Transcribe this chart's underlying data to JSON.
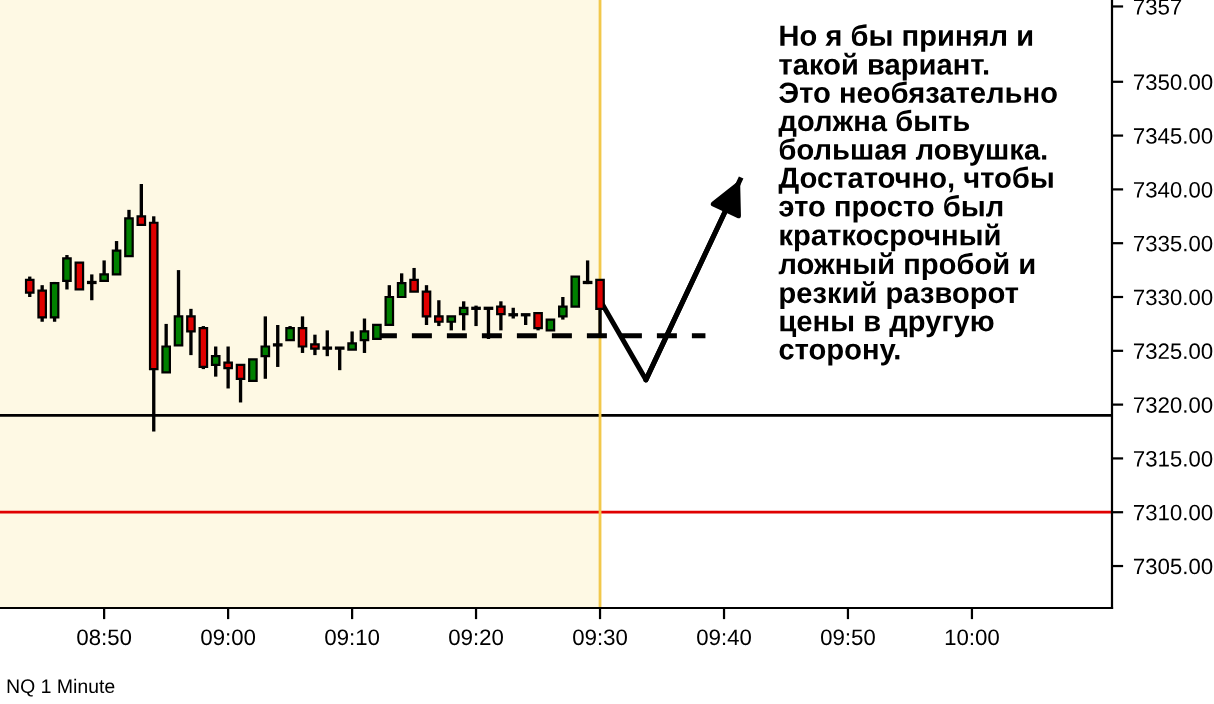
{
  "chart_data": {
    "type": "candlestick",
    "x": [
      8.7333,
      8.75,
      8.7667,
      8.7833,
      8.8,
      8.8167,
      8.8333,
      8.85,
      8.8667,
      8.8833,
      8.9,
      8.9167,
      8.9333,
      8.95,
      8.9667,
      8.9833,
      9.0,
      9.0167,
      9.0333,
      9.05,
      9.0667,
      9.0833,
      9.1,
      9.1167,
      9.1333,
      9.15,
      9.1667,
      9.1833,
      9.2,
      9.2167,
      9.2333,
      9.25,
      9.2667,
      9.2833,
      9.3,
      9.3167,
      9.3333,
      9.35,
      9.3667,
      9.3833,
      9.4,
      9.4167,
      9.4333,
      9.45,
      9.4667,
      9.4833,
      9.5
    ],
    "ohlc": [
      [
        7331.6,
        7331.9,
        7330.0,
        7330.4
      ],
      [
        7330.6,
        7331.1,
        7327.7,
        7328.1
      ],
      [
        7328.1,
        7331.4,
        7327.7,
        7331.3
      ],
      [
        7331.5,
        7333.9,
        7330.7,
        7333.6
      ],
      [
        7333.2,
        7333.2,
        7330.7,
        7330.7
      ],
      [
        7331.4,
        7332.1,
        7329.7,
        7331.3
      ],
      [
        7331.5,
        7333.4,
        7331.5,
        7332.1
      ],
      [
        7332.1,
        7335.2,
        7332.1,
        7334.3
      ],
      [
        7333.8,
        7338.1,
        7333.8,
        7337.3
      ],
      [
        7337.5,
        7340.5,
        7336.7,
        7336.7
      ],
      [
        7336.9,
        7337.5,
        7317.5,
        7323.3
      ],
      [
        7323.0,
        7327.5,
        7323.0,
        7325.4
      ],
      [
        7325.5,
        7332.5,
        7325.5,
        7328.2
      ],
      [
        7328.2,
        7328.9,
        7324.6,
        7326.8
      ],
      [
        7327.1,
        7327.3,
        7323.3,
        7323.5
      ],
      [
        7323.7,
        7325.4,
        7322.6,
        7324.5
      ],
      [
        7323.9,
        7325.4,
        7321.5,
        7323.4
      ],
      [
        7323.7,
        7323.7,
        7320.2,
        7322.4
      ],
      [
        7322.2,
        7324.2,
        7322.2,
        7324.2
      ],
      [
        7324.5,
        7328.2,
        7322.4,
        7325.4
      ],
      [
        7325.5,
        7327.4,
        7323.5,
        7325.6
      ],
      [
        7326.0,
        7327.3,
        7326.0,
        7327.1
      ],
      [
        7327.1,
        7328.2,
        7324.8,
        7325.4
      ],
      [
        7325.6,
        7326.5,
        7324.6,
        7325.2
      ],
      [
        7325.3,
        7326.9,
        7324.5,
        7325.2
      ],
      [
        7325.3,
        7325.3,
        7323.2,
        7325.2
      ],
      [
        7325.1,
        7326.8,
        7325.1,
        7325.7
      ],
      [
        7326.0,
        7328.0,
        7324.8,
        7326.8
      ],
      [
        7326.1,
        7327.4,
        7326.1,
        7327.4
      ],
      [
        7327.4,
        7331.1,
        7327.4,
        7330.0
      ],
      [
        7330.0,
        7332.2,
        7330.0,
        7331.3
      ],
      [
        7331.6,
        7332.7,
        7330.5,
        7330.5
      ],
      [
        7330.5,
        7331.1,
        7327.4,
        7328.2
      ],
      [
        7328.2,
        7329.7,
        7327.3,
        7327.7
      ],
      [
        7327.7,
        7328.2,
        7326.9,
        7328.2
      ],
      [
        7328.4,
        7329.6,
        7326.9,
        7329.0
      ],
      [
        7329.0,
        7329.2,
        7327.3,
        7328.9
      ],
      [
        7329.0,
        7329.0,
        7326.1,
        7328.9
      ],
      [
        7329.1,
        7329.6,
        7326.9,
        7328.4
      ],
      [
        7328.4,
        7329.0,
        7328.0,
        7328.3
      ],
      [
        7328.4,
        7328.4,
        7327.4,
        7328.3
      ],
      [
        7328.5,
        7328.5,
        7326.9,
        7327.1
      ],
      [
        7326.9,
        7327.9,
        7326.9,
        7327.9
      ],
      [
        7328.2,
        7330.0,
        7327.9,
        7329.1
      ],
      [
        7329.1,
        7331.9,
        7329.1,
        7331.9
      ],
      [
        7331.4,
        7333.4,
        7331.2,
        7331.3
      ],
      [
        7331.6,
        7331.6,
        7326.3,
        7328.9
      ]
    ],
    "colors": [
      "#e00000",
      "#e00000",
      "#008000",
      "#008000",
      "#e00000",
      "#e00000",
      "#008000",
      "#008000",
      "#008000",
      "#e00000",
      "#e00000",
      "#008000",
      "#008000",
      "#e00000",
      "#e00000",
      "#008000",
      "#e00000",
      "#e00000",
      "#008000",
      "#008000",
      "#008000",
      "#008000",
      "#e00000",
      "#e00000",
      "#e00000",
      "#e00000",
      "#008000",
      "#008000",
      "#008000",
      "#008000",
      "#008000",
      "#e00000",
      "#e00000",
      "#e00000",
      "#008000",
      "#008000",
      "#e00000",
      "#e00000",
      "#e00000",
      "#e00000",
      "#e00000",
      "#e00000",
      "#008000",
      "#008000",
      "#008000",
      "#e00000",
      "#e00000"
    ],
    "series": [
      {
        "type": "line",
        "color": "#000000",
        "line_style": "dashed",
        "x": [
          9.2,
          9.6417
        ],
        "values": [
          7326.4,
          7326.4
        ]
      },
      {
        "type": "line",
        "color": "#000000",
        "line_style": "solid",
        "x": [
          9.5,
          9.5617,
          9.6883
        ],
        "values": [
          7329.7,
          7322.3,
          7340.9
        ]
      }
    ],
    "ref_lines": [
      {
        "axis": "y",
        "value": 7319,
        "color": "#000000"
      },
      {
        "axis": "y",
        "value": 7310,
        "color": "#e00000"
      },
      {
        "axis": "x",
        "value": 9.5,
        "color": "#f2c84b"
      }
    ],
    "bands": [
      {
        "axis": "x",
        "from": 8.6933,
        "to": 9.5,
        "color": "#fef9e4"
      }
    ],
    "xlim": [
      8.6933,
      10.1883
    ],
    "ylim": [
      7301.1,
      7357.6
    ],
    "xticks": [
      {
        "value": 8.8333,
        "label": "08:50"
      },
      {
        "value": 9.0,
        "label": "09:00"
      },
      {
        "value": 9.1667,
        "label": "09:10"
      },
      {
        "value": 9.3333,
        "label": "09:20"
      },
      {
        "value": 9.5,
        "label": "09:30"
      },
      {
        "value": 9.6667,
        "label": "09:40"
      },
      {
        "value": 9.8333,
        "label": "09:50"
      },
      {
        "value": 10.0,
        "label": "10:00"
      }
    ],
    "yticks": [
      {
        "value": 7305,
        "label": "7305.00"
      },
      {
        "value": 7310,
        "label": "7310.00"
      },
      {
        "value": 7315,
        "label": "7315.00"
      },
      {
        "value": 7320,
        "label": "7320.00"
      },
      {
        "value": 7325,
        "label": "7325.00"
      },
      {
        "value": 7330,
        "label": "7330.00"
      },
      {
        "value": 7335,
        "label": "7335.00"
      },
      {
        "value": 7340,
        "label": "7340.00"
      },
      {
        "value": 7345,
        "label": "7345.00"
      },
      {
        "value": 7350,
        "label": "7350.00"
      },
      {
        "value": 7357,
        "label": "7357"
      }
    ],
    "grid": false,
    "annotations": [
      "Но я бы принял и\nтакой вариант.\nЭто необязательно\nдолжна быть\nбольшая ловушка.\nДостаточно, чтобы\nэто просто был\nкраткосрочный\nложный пробой и\nрезкий разворот\nцены в другую\nсторону.",
      "NQ 1 Minute"
    ]
  }
}
